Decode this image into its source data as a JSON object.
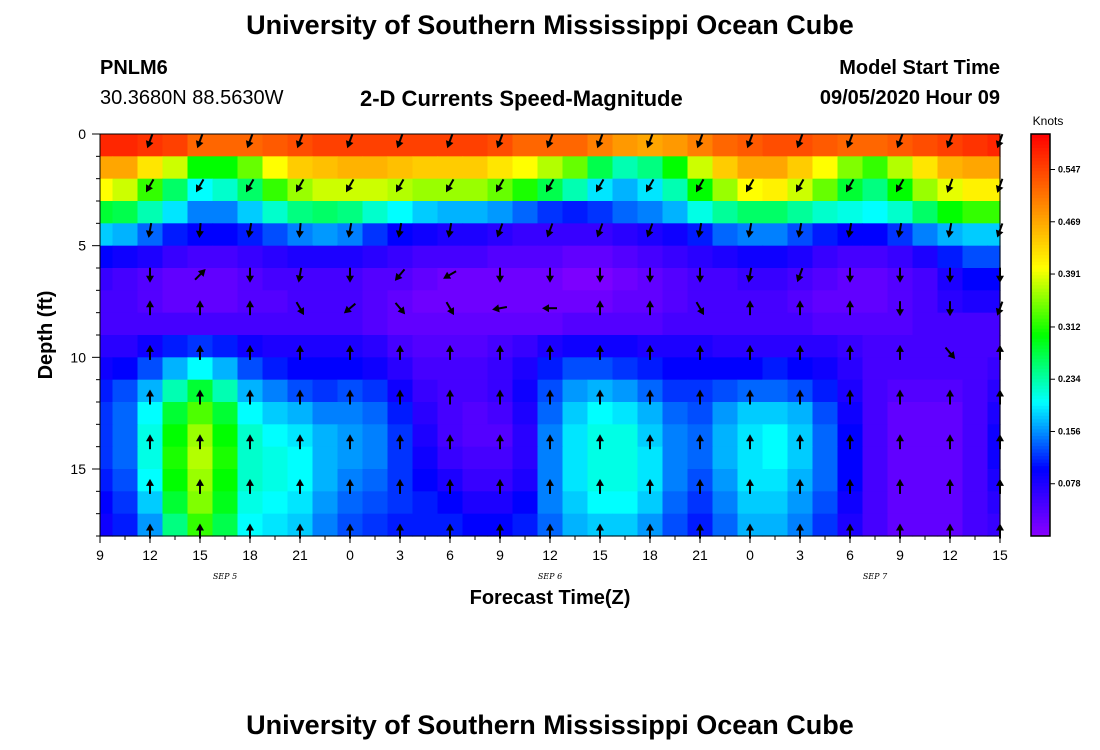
{
  "header": {
    "title": "University of Southern Mississippi Ocean Cube",
    "station_id": "PNLM6",
    "station_coords": "30.3680N 88.5630W",
    "subtitle": "2-D Currents Speed-Magnitude",
    "model_start_label": "Model Start Time",
    "model_start_value": "09/05/2020 Hour 09"
  },
  "footer": {
    "title": "University of Southern Mississippi Ocean Cube"
  },
  "colors": {
    "scale": [
      "#8a00ff",
      "#0000ff",
      "#00ffff",
      "#00ff00",
      "#ffff00",
      "#ff8000",
      "#ff0000"
    ],
    "arrow": "#000000",
    "background": "#ffffff"
  },
  "chart_data": {
    "type": "heatmap",
    "title": "2-D Currents Speed-Magnitude",
    "xlabel": "Forecast Time(Z)",
    "ylabel": "Depth (ft)",
    "x_tick_labels": [
      "9",
      "12",
      "15",
      "18",
      "21",
      "0",
      "3",
      "6",
      "9",
      "12",
      "15",
      "18",
      "21",
      "0",
      "3",
      "6",
      "9",
      "12",
      "15"
    ],
    "x_date_labels": [
      {
        "label": "SEP 5",
        "at_tick": 2.5
      },
      {
        "label": "SEP 6",
        "at_tick": 9
      },
      {
        "label": "SEP 7",
        "at_tick": 15.5
      }
    ],
    "y_ticks": [
      0,
      5,
      10,
      15
    ],
    "ylim": [
      0,
      18
    ],
    "y_inverted": true,
    "colorbar": {
      "label": "Knots",
      "ticks": [
        0.078,
        0.156,
        0.234,
        0.312,
        0.391,
        0.469,
        0.547
      ],
      "range": [
        0.0,
        0.6
      ]
    },
    "depth_levels_ft": [
      0.5,
      1.5,
      2.5,
      3.5,
      4.5,
      5.5,
      6.5,
      7.5,
      8.5,
      9.5,
      10.5,
      11.5,
      12.5,
      13.5,
      14.5,
      15.5,
      16.5,
      17.5
    ],
    "column_times_ticks": [
      0,
      0.5,
      1,
      1.5,
      2,
      2.5,
      3,
      3.5,
      4,
      4.5,
      5,
      5.5,
      6,
      6.5,
      7,
      7.5,
      8,
      8.5,
      9,
      9.5,
      10,
      10.5,
      11,
      11.5,
      12,
      12.5,
      13,
      13.5,
      14,
      14.5,
      15,
      15.5,
      16,
      16.5,
      17,
      17.5,
      18
    ],
    "speed_knots_rows": [
      [
        0.57,
        0.57,
        0.56,
        0.55,
        0.52,
        0.52,
        0.52,
        0.53,
        0.54,
        0.55,
        0.55,
        0.55,
        0.55,
        0.55,
        0.55,
        0.55,
        0.54,
        0.52,
        0.52,
        0.52,
        0.5,
        0.48,
        0.47,
        0.48,
        0.5,
        0.52,
        0.53,
        0.54,
        0.54,
        0.53,
        0.52,
        0.52,
        0.53,
        0.54,
        0.55,
        0.56,
        0.57
      ],
      [
        0.47,
        0.47,
        0.42,
        0.38,
        0.3,
        0.3,
        0.34,
        0.4,
        0.44,
        0.45,
        0.46,
        0.46,
        0.45,
        0.44,
        0.44,
        0.44,
        0.42,
        0.4,
        0.37,
        0.34,
        0.27,
        0.23,
        0.25,
        0.3,
        0.38,
        0.44,
        0.47,
        0.47,
        0.44,
        0.4,
        0.35,
        0.32,
        0.37,
        0.42,
        0.46,
        0.47,
        0.47
      ],
      [
        0.4,
        0.38,
        0.32,
        0.26,
        0.2,
        0.22,
        0.26,
        0.32,
        0.36,
        0.38,
        0.38,
        0.38,
        0.37,
        0.36,
        0.36,
        0.36,
        0.34,
        0.31,
        0.27,
        0.23,
        0.19,
        0.17,
        0.19,
        0.23,
        0.3,
        0.36,
        0.4,
        0.41,
        0.38,
        0.34,
        0.28,
        0.25,
        0.3,
        0.36,
        0.39,
        0.41,
        0.41
      ],
      [
        0.28,
        0.27,
        0.23,
        0.19,
        0.15,
        0.15,
        0.18,
        0.22,
        0.25,
        0.26,
        0.25,
        0.22,
        0.2,
        0.18,
        0.17,
        0.17,
        0.16,
        0.14,
        0.12,
        0.11,
        0.12,
        0.14,
        0.15,
        0.17,
        0.21,
        0.24,
        0.26,
        0.26,
        0.24,
        0.22,
        0.21,
        0.2,
        0.22,
        0.26,
        0.3,
        0.32,
        0.32
      ],
      [
        0.18,
        0.17,
        0.14,
        0.11,
        0.1,
        0.1,
        0.11,
        0.13,
        0.15,
        0.16,
        0.15,
        0.12,
        0.1,
        0.09,
        0.08,
        0.08,
        0.07,
        0.06,
        0.06,
        0.06,
        0.06,
        0.07,
        0.08,
        0.09,
        0.11,
        0.14,
        0.15,
        0.15,
        0.13,
        0.11,
        0.1,
        0.1,
        0.12,
        0.15,
        0.17,
        0.18,
        0.18
      ],
      [
        0.1,
        0.09,
        0.08,
        0.06,
        0.05,
        0.05,
        0.06,
        0.07,
        0.08,
        0.08,
        0.08,
        0.07,
        0.06,
        0.05,
        0.05,
        0.05,
        0.04,
        0.04,
        0.04,
        0.03,
        0.03,
        0.04,
        0.05,
        0.06,
        0.07,
        0.08,
        0.09,
        0.09,
        0.08,
        0.06,
        0.05,
        0.05,
        0.06,
        0.08,
        0.11,
        0.13,
        0.13
      ],
      [
        0.06,
        0.05,
        0.04,
        0.03,
        0.03,
        0.03,
        0.04,
        0.05,
        0.05,
        0.05,
        0.05,
        0.04,
        0.04,
        0.03,
        0.02,
        0.02,
        0.02,
        0.02,
        0.02,
        0.01,
        0.01,
        0.02,
        0.03,
        0.04,
        0.05,
        0.05,
        0.06,
        0.06,
        0.05,
        0.04,
        0.03,
        0.03,
        0.04,
        0.05,
        0.08,
        0.1,
        0.1
      ],
      [
        0.05,
        0.05,
        0.04,
        0.03,
        0.03,
        0.03,
        0.04,
        0.04,
        0.05,
        0.05,
        0.05,
        0.04,
        0.03,
        0.02,
        0.02,
        0.02,
        0.02,
        0.02,
        0.02,
        0.02,
        0.02,
        0.03,
        0.03,
        0.04,
        0.05,
        0.05,
        0.05,
        0.05,
        0.04,
        0.03,
        0.03,
        0.03,
        0.04,
        0.05,
        0.07,
        0.08,
        0.08
      ],
      [
        0.05,
        0.05,
        0.05,
        0.05,
        0.05,
        0.05,
        0.05,
        0.05,
        0.05,
        0.05,
        0.05,
        0.04,
        0.03,
        0.03,
        0.03,
        0.03,
        0.03,
        0.03,
        0.03,
        0.04,
        0.04,
        0.04,
        0.04,
        0.05,
        0.05,
        0.05,
        0.05,
        0.05,
        0.05,
        0.04,
        0.04,
        0.04,
        0.04,
        0.05,
        0.05,
        0.05,
        0.05
      ],
      [
        0.07,
        0.07,
        0.09,
        0.11,
        0.12,
        0.11,
        0.09,
        0.08,
        0.08,
        0.08,
        0.08,
        0.07,
        0.05,
        0.04,
        0.04,
        0.04,
        0.05,
        0.06,
        0.08,
        0.09,
        0.09,
        0.09,
        0.08,
        0.08,
        0.08,
        0.07,
        0.07,
        0.07,
        0.07,
        0.07,
        0.06,
        0.05,
        0.05,
        0.05,
        0.05,
        0.05,
        0.05
      ],
      [
        0.09,
        0.1,
        0.13,
        0.17,
        0.2,
        0.17,
        0.13,
        0.11,
        0.1,
        0.1,
        0.1,
        0.09,
        0.07,
        0.05,
        0.05,
        0.05,
        0.06,
        0.08,
        0.11,
        0.13,
        0.13,
        0.12,
        0.11,
        0.1,
        0.1,
        0.1,
        0.1,
        0.11,
        0.1,
        0.09,
        0.07,
        0.05,
        0.05,
        0.05,
        0.05,
        0.05,
        0.06
      ],
      [
        0.11,
        0.13,
        0.17,
        0.23,
        0.28,
        0.23,
        0.17,
        0.15,
        0.13,
        0.12,
        0.13,
        0.12,
        0.09,
        0.06,
        0.05,
        0.05,
        0.06,
        0.09,
        0.13,
        0.16,
        0.17,
        0.16,
        0.14,
        0.12,
        0.12,
        0.13,
        0.14,
        0.14,
        0.13,
        0.11,
        0.08,
        0.05,
        0.04,
        0.04,
        0.04,
        0.05,
        0.07
      ],
      [
        0.12,
        0.14,
        0.2,
        0.28,
        0.33,
        0.28,
        0.2,
        0.18,
        0.17,
        0.15,
        0.15,
        0.14,
        0.11,
        0.07,
        0.05,
        0.04,
        0.05,
        0.08,
        0.14,
        0.18,
        0.2,
        0.19,
        0.17,
        0.14,
        0.13,
        0.16,
        0.18,
        0.18,
        0.17,
        0.13,
        0.09,
        0.05,
        0.03,
        0.03,
        0.03,
        0.05,
        0.08
      ],
      [
        0.12,
        0.14,
        0.21,
        0.3,
        0.36,
        0.3,
        0.22,
        0.2,
        0.19,
        0.17,
        0.16,
        0.15,
        0.12,
        0.08,
        0.05,
        0.04,
        0.04,
        0.07,
        0.15,
        0.19,
        0.21,
        0.21,
        0.18,
        0.15,
        0.14,
        0.17,
        0.19,
        0.2,
        0.18,
        0.14,
        0.1,
        0.05,
        0.03,
        0.03,
        0.03,
        0.05,
        0.09
      ],
      [
        0.12,
        0.14,
        0.21,
        0.31,
        0.37,
        0.31,
        0.22,
        0.21,
        0.2,
        0.17,
        0.16,
        0.15,
        0.12,
        0.09,
        0.06,
        0.05,
        0.05,
        0.07,
        0.15,
        0.19,
        0.21,
        0.21,
        0.19,
        0.15,
        0.14,
        0.17,
        0.19,
        0.2,
        0.18,
        0.14,
        0.1,
        0.05,
        0.03,
        0.03,
        0.03,
        0.05,
        0.09
      ],
      [
        0.11,
        0.13,
        0.2,
        0.3,
        0.36,
        0.3,
        0.22,
        0.21,
        0.2,
        0.17,
        0.15,
        0.14,
        0.12,
        0.1,
        0.08,
        0.06,
        0.06,
        0.08,
        0.15,
        0.19,
        0.21,
        0.21,
        0.19,
        0.15,
        0.13,
        0.16,
        0.19,
        0.19,
        0.17,
        0.14,
        0.1,
        0.05,
        0.03,
        0.03,
        0.03,
        0.05,
        0.08
      ],
      [
        0.1,
        0.12,
        0.18,
        0.28,
        0.35,
        0.29,
        0.21,
        0.2,
        0.19,
        0.16,
        0.14,
        0.13,
        0.12,
        0.11,
        0.1,
        0.08,
        0.08,
        0.1,
        0.15,
        0.18,
        0.2,
        0.2,
        0.18,
        0.14,
        0.12,
        0.15,
        0.18,
        0.18,
        0.16,
        0.13,
        0.09,
        0.05,
        0.03,
        0.03,
        0.03,
        0.05,
        0.07
      ],
      [
        0.09,
        0.11,
        0.16,
        0.25,
        0.32,
        0.27,
        0.2,
        0.19,
        0.18,
        0.15,
        0.13,
        0.12,
        0.11,
        0.11,
        0.11,
        0.1,
        0.1,
        0.11,
        0.14,
        0.17,
        0.18,
        0.18,
        0.16,
        0.13,
        0.11,
        0.14,
        0.17,
        0.17,
        0.15,
        0.12,
        0.08,
        0.05,
        0.03,
        0.03,
        0.03,
        0.05,
        0.06
      ]
    ],
    "arrow_times_ticks": [
      1,
      2,
      3,
      4,
      5,
      6,
      7,
      8,
      9,
      10,
      11,
      12,
      13,
      14,
      15,
      16,
      17,
      18
    ],
    "arrow_rows": [
      {
        "depth_ft": 0.3,
        "angles_deg": [
          200,
          200,
          200,
          200,
          200,
          200,
          200,
          200,
          200,
          200,
          200,
          200,
          200,
          200,
          200,
          200,
          200,
          200
        ]
      },
      {
        "depth_ft": 2.3,
        "angles_deg": [
          210,
          210,
          210,
          210,
          210,
          210,
          210,
          210,
          210,
          210,
          210,
          210,
          210,
          210,
          210,
          210,
          200,
          200
        ]
      },
      {
        "depth_ft": 4.3,
        "angles_deg": [
          190,
          185,
          190,
          185,
          190,
          190,
          190,
          200,
          200,
          200,
          200,
          190,
          190,
          190,
          190,
          190,
          190,
          200
        ]
      },
      {
        "depth_ft": 6.3,
        "angles_deg": [
          180,
          45,
          180,
          190,
          180,
          220,
          240,
          180,
          180,
          180,
          180,
          180,
          190,
          200,
          180,
          180,
          180,
          180
        ]
      },
      {
        "depth_ft": 7.8,
        "angles_deg": [
          0,
          0,
          0,
          150,
          230,
          140,
          150,
          260,
          270,
          0,
          0,
          150,
          0,
          0,
          0,
          180,
          180,
          200
        ]
      },
      {
        "depth_ft": 9.8,
        "angles_deg": [
          0,
          0,
          0,
          0,
          0,
          0,
          0,
          0,
          0,
          0,
          0,
          0,
          0,
          0,
          0,
          0,
          140,
          0
        ]
      },
      {
        "depth_ft": 11.8,
        "angles_deg": [
          0,
          0,
          0,
          0,
          0,
          0,
          0,
          0,
          0,
          0,
          0,
          0,
          0,
          0,
          0,
          0,
          0,
          0
        ]
      },
      {
        "depth_ft": 13.8,
        "angles_deg": [
          0,
          0,
          0,
          0,
          0,
          0,
          0,
          0,
          0,
          0,
          0,
          0,
          0,
          0,
          0,
          0,
          0,
          0
        ]
      },
      {
        "depth_ft": 15.8,
        "angles_deg": [
          0,
          0,
          0,
          0,
          0,
          0,
          0,
          0,
          0,
          0,
          0,
          0,
          0,
          0,
          0,
          0,
          0,
          0
        ]
      },
      {
        "depth_ft": 17.8,
        "angles_deg": [
          0,
          0,
          0,
          0,
          0,
          0,
          0,
          0,
          0,
          0,
          0,
          0,
          0,
          0,
          0,
          0,
          0,
          0
        ]
      }
    ]
  }
}
